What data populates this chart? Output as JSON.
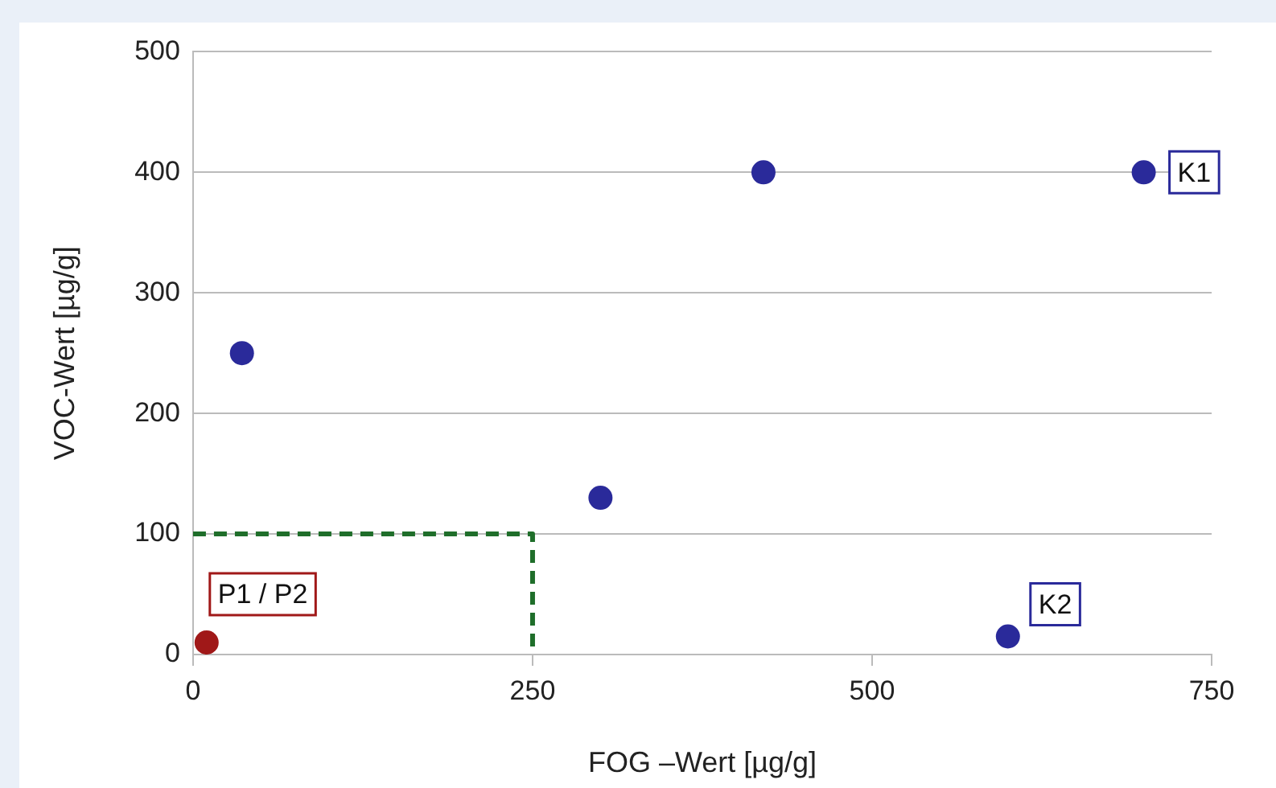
{
  "chart_data": {
    "type": "scatter",
    "xlabel": "FOG –Wert [µg/g]",
    "ylabel": "VOC-Wert [µg/g]",
    "xlim": [
      0,
      750
    ],
    "xticks": [
      0,
      250,
      500,
      750
    ],
    "ylim": [
      0,
      500
    ],
    "yticks": [
      0,
      100,
      200,
      300,
      400,
      500
    ],
    "grid": "y",
    "legend": false,
    "marker": "circle",
    "series": [
      {
        "type": "scatter",
        "color": "#2a2a9a",
        "x": [
          36,
          300,
          420,
          700,
          600
        ],
        "values": [
          250,
          130,
          400,
          400,
          15
        ]
      },
      {
        "type": "scatter",
        "color": "#a01818",
        "x": [
          10
        ],
        "values": [
          10
        ]
      },
      {
        "type": "line",
        "color": "#1f6e2a",
        "line_style": "dashed",
        "marker": "none",
        "x": [
          0,
          250,
          250
        ],
        "values": [
          100,
          100,
          0
        ]
      }
    ],
    "annotations": [
      {
        "text": "K1",
        "x": 700,
        "y": 400
      },
      {
        "text": "K2",
        "x": 600,
        "y": 15
      },
      {
        "text": "P1 / P2",
        "x": 10,
        "y": 10
      }
    ]
  }
}
